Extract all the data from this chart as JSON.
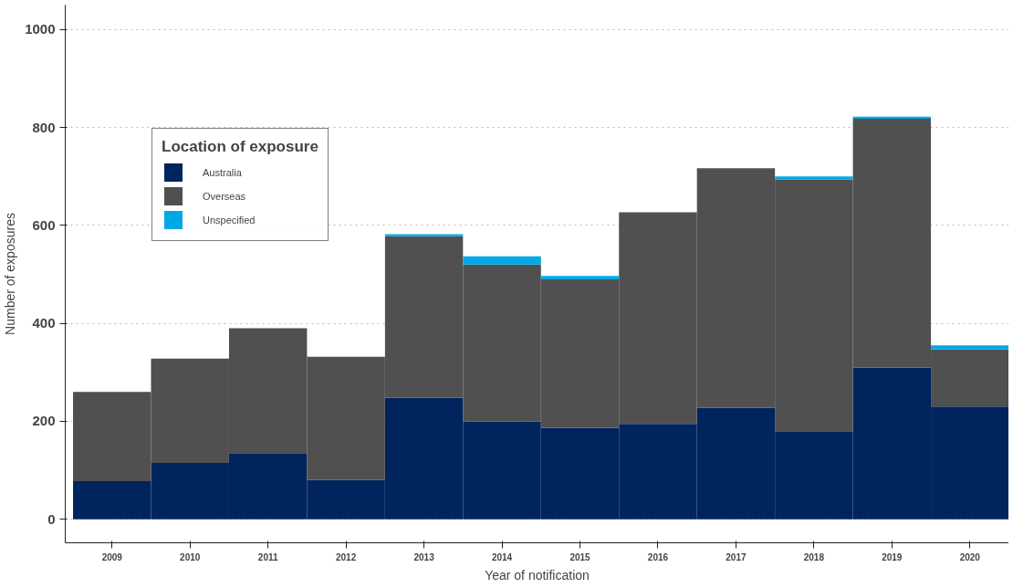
{
  "chart_data": {
    "type": "bar",
    "stacked": true,
    "xlabel": "Year of notification",
    "ylabel": "Number of exposures",
    "legend_title": "Location of exposure",
    "x": [
      2009,
      2010,
      2011,
      2012,
      2013,
      2014,
      2015,
      2016,
      2017,
      2018,
      2019,
      2020
    ],
    "series": [
      {
        "name": "Australia",
        "color": "#00245d",
        "values": [
          78,
          115,
          135,
          80,
          248,
          200,
          187,
          195,
          228,
          180,
          310,
          230
        ]
      },
      {
        "name": "Overseas",
        "color": "#505050",
        "values": [
          182,
          213,
          255,
          252,
          330,
          320,
          303,
          432,
          489,
          514,
          508,
          117
        ]
      },
      {
        "name": "Unspecified",
        "color": "#00a9e6",
        "values": [
          0,
          0,
          0,
          0,
          4,
          17,
          7,
          0,
          0,
          6,
          4,
          8
        ]
      }
    ],
    "xlim": [
      2008.4,
      2020.5
    ],
    "xticks": [
      2009,
      2010,
      2011,
      2012,
      2013,
      2014,
      2015,
      2016,
      2017,
      2018,
      2019,
      2020
    ],
    "ylim": [
      -48,
      1050
    ],
    "yticks": [
      0,
      200,
      400,
      600,
      800,
      1000
    ],
    "grid": "y",
    "legend": "top left"
  }
}
